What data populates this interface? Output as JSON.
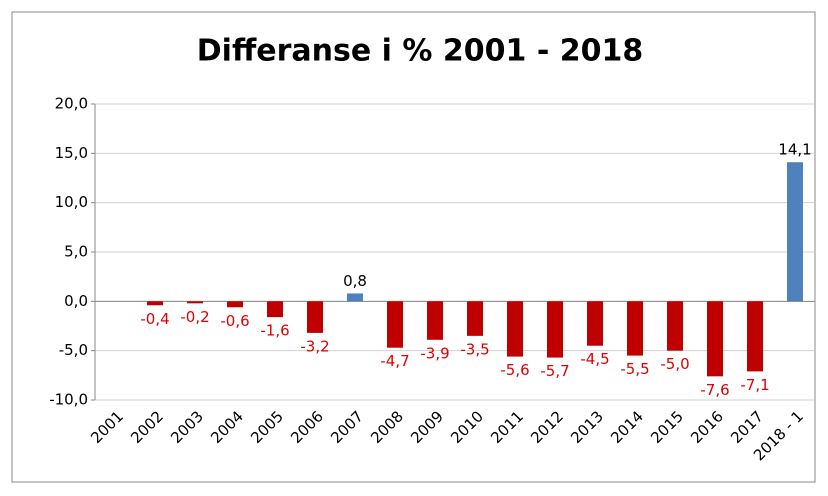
{
  "chart_data": {
    "type": "bar",
    "title": "Differanse i % 2001 - 2018",
    "categories": [
      "2001",
      "2002",
      "2003",
      "2004",
      "2005",
      "2006",
      "2007",
      "2008",
      "2009",
      "2010",
      "2011",
      "2012",
      "2013",
      "2014",
      "2015",
      "2016",
      "2017",
      "2018 - 1"
    ],
    "values": [
      null,
      -0.4,
      -0.2,
      -0.6,
      -1.6,
      -3.2,
      0.8,
      -4.7,
      -3.9,
      -3.5,
      -5.6,
      -5.7,
      -4.5,
      -5.5,
      -5.0,
      -7.6,
      -7.1,
      14.1
    ],
    "value_labels": [
      null,
      "-0,4",
      "-0,2",
      "-0,6",
      "-1,6",
      "-3,2",
      "0,8",
      "-4,7",
      "-3,9",
      "-3,5",
      "-5,6",
      "-5,7",
      "-4,5",
      "-5,5",
      "-5,0",
      "-7,6",
      "-7,1",
      "14,1"
    ],
    "positive_color": "#4f81bd",
    "negative_color": "#c00000",
    "ylim": [
      -10,
      20
    ],
    "yticks": [
      {
        "value": -10,
        "label": "-10,0"
      },
      {
        "value": -5,
        "label": "-5,0"
      },
      {
        "value": 0,
        "label": "0,0"
      },
      {
        "value": 5,
        "label": "5,0"
      },
      {
        "value": 10,
        "label": "10,0"
      },
      {
        "value": 15,
        "label": "15,0"
      },
      {
        "value": 20,
        "label": "20,0"
      }
    ],
    "grid": true
  }
}
